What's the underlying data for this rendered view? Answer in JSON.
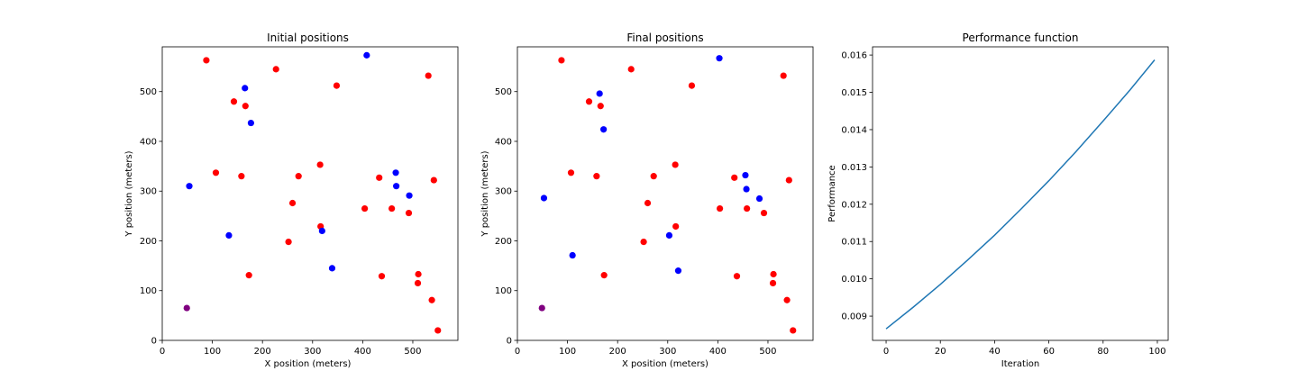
{
  "colors": {
    "red": "#ff0000",
    "blue": "#0000ff",
    "purple": "#800080",
    "line": "#1f77b4"
  },
  "chart_data": [
    {
      "type": "scatter",
      "title": "Initial positions",
      "xlabel": "X position (meters)",
      "ylabel": "Y position (meters)",
      "xlim": [
        0,
        590
      ],
      "ylim": [
        0,
        590
      ],
      "xticks": [
        0,
        100,
        200,
        300,
        400,
        500
      ],
      "yticks": [
        0,
        100,
        200,
        300,
        400,
        500
      ],
      "grid": false,
      "series": [
        {
          "color": "red",
          "points": [
            [
              88,
              563
            ],
            [
              227,
              545
            ],
            [
              348,
              512
            ],
            [
              531,
              532
            ],
            [
              143,
              480
            ],
            [
              166,
              471
            ],
            [
              107,
              337
            ],
            [
              158,
              330
            ],
            [
              272,
              330
            ],
            [
              315,
              353
            ],
            [
              433,
              327
            ],
            [
              542,
              322
            ],
            [
              260,
              276
            ],
            [
              404,
              265
            ],
            [
              458,
              265
            ],
            [
              492,
              256
            ],
            [
              316,
              229
            ],
            [
              252,
              198
            ],
            [
              173,
              131
            ],
            [
              438,
              129
            ],
            [
              511,
              133
            ],
            [
              510,
              115
            ],
            [
              538,
              81
            ],
            [
              550,
              20
            ]
          ]
        },
        {
          "color": "blue",
          "points": [
            [
              408,
              573
            ],
            [
              165,
              507
            ],
            [
              177,
              437
            ],
            [
              54,
              310
            ],
            [
              466,
              337
            ],
            [
              467,
              310
            ],
            [
              493,
              291
            ],
            [
              133,
              211
            ],
            [
              319,
              220
            ],
            [
              339,
              145
            ]
          ]
        },
        {
          "color": "purple",
          "points": [
            [
              49,
              65
            ]
          ]
        }
      ]
    },
    {
      "type": "scatter",
      "title": "Final positions",
      "xlabel": "X position (meters)",
      "ylabel": "Y position (meters)",
      "xlim": [
        0,
        590
      ],
      "ylim": [
        0,
        590
      ],
      "xticks": [
        0,
        100,
        200,
        300,
        400,
        500
      ],
      "yticks": [
        0,
        100,
        200,
        300,
        400,
        500
      ],
      "grid": false,
      "series": [
        {
          "color": "red",
          "points": [
            [
              88,
              563
            ],
            [
              227,
              545
            ],
            [
              348,
              512
            ],
            [
              531,
              532
            ],
            [
              143,
              480
            ],
            [
              166,
              471
            ],
            [
              107,
              337
            ],
            [
              158,
              330
            ],
            [
              272,
              330
            ],
            [
              315,
              353
            ],
            [
              433,
              327
            ],
            [
              542,
              322
            ],
            [
              260,
              276
            ],
            [
              404,
              265
            ],
            [
              458,
              265
            ],
            [
              492,
              256
            ],
            [
              316,
              229
            ],
            [
              252,
              198
            ],
            [
              173,
              131
            ],
            [
              438,
              129
            ],
            [
              511,
              133
            ],
            [
              510,
              115
            ],
            [
              538,
              81
            ],
            [
              550,
              20
            ]
          ]
        },
        {
          "color": "blue",
          "points": [
            [
              403,
              567
            ],
            [
              164,
              496
            ],
            [
              172,
              424
            ],
            [
              53,
              286
            ],
            [
              455,
              332
            ],
            [
              457,
              304
            ],
            [
              483,
              285
            ],
            [
              303,
              211
            ],
            [
              110,
              171
            ],
            [
              321,
              140
            ]
          ]
        },
        {
          "color": "purple",
          "points": [
            [
              49,
              65
            ]
          ]
        }
      ]
    },
    {
      "type": "line",
      "title": "Performance function",
      "xlabel": "Iteration",
      "ylabel": "Performance",
      "xlim": [
        -5,
        104
      ],
      "ylim": [
        0.00835,
        0.01622
      ],
      "xticks": [
        0,
        20,
        40,
        60,
        80,
        100
      ],
      "yticks": [
        0.009,
        0.01,
        0.011,
        0.012,
        0.013,
        0.014,
        0.015,
        0.016
      ],
      "ytick_labels": [
        "0.009",
        "0.010",
        "0.011",
        "0.012",
        "0.013",
        "0.014",
        "0.015",
        "0.016"
      ],
      "grid": false,
      "series": [
        {
          "color": "line",
          "x": [
            0,
            10,
            20,
            30,
            40,
            50,
            60,
            70,
            80,
            90,
            99
          ],
          "values": [
            0.00866,
            0.00924,
            0.00985,
            0.0105,
            0.01117,
            0.01189,
            0.01263,
            0.01341,
            0.01423,
            0.01507,
            0.01587
          ]
        }
      ]
    }
  ]
}
